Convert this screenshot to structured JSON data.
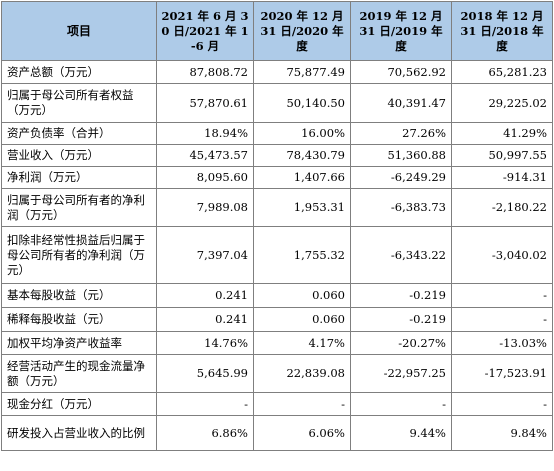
{
  "table": {
    "headers": [
      "项目",
      "2021 年 6 月 30 日/2021 年 1-6 月",
      "2020 年 12 月 31 日/2020 年度",
      "2019 年 12 月 31 日/2019 年度",
      "2018 年 12 月 31 日/2018 年度"
    ],
    "rows": [
      {
        "label": "资产总额（万元）",
        "values": [
          "87,808.72",
          "75,877.49",
          "70,562.92",
          "65,281.23"
        ]
      },
      {
        "label": "归属于母公司所有者权益（万元）",
        "values": [
          "57,870.61",
          "50,140.50",
          "40,391.47",
          "29,225.02"
        ]
      },
      {
        "label": "资产负债率（合并）",
        "values": [
          "18.94%",
          "16.00%",
          "27.26%",
          "41.29%"
        ]
      },
      {
        "label": "营业收入（万元）",
        "values": [
          "45,473.57",
          "78,430.79",
          "51,360.88",
          "50,997.55"
        ]
      },
      {
        "label": "净利润（万元）",
        "values": [
          "8,095.60",
          "1,407.66",
          "-6,249.29",
          "-914.31"
        ]
      },
      {
        "label": "归属于母公司所有者的净利润（万元）",
        "values": [
          "7,989.08",
          "1,953.31",
          "-6,383.73",
          "-2,180.22"
        ]
      },
      {
        "label": "扣除非经常性损益后归属于母公司所有者的净利润（万元）",
        "values": [
          "7,397.04",
          "1,755.32",
          "-6,343.22",
          "-3,040.02"
        ]
      },
      {
        "label": "基本每股收益（元）",
        "values": [
          "0.241",
          "0.060",
          "-0.219",
          "-"
        ]
      },
      {
        "label": "稀释每股收益（元）",
        "values": [
          "0.241",
          "0.060",
          "-0.219",
          "-"
        ]
      },
      {
        "label": "加权平均净资产收益率",
        "values": [
          "14.76%",
          "4.17%",
          "-20.27%",
          "-13.03%"
        ]
      },
      {
        "label": "经营活动产生的现金流量净额（万元）",
        "values": [
          "5,645.99",
          "22,839.08",
          "-22,957.25",
          "-17,523.91"
        ]
      },
      {
        "label": "现金分红（万元）",
        "values": [
          "-",
          "-",
          "-",
          "-"
        ]
      },
      {
        "label": "研发投入占营业收入的比例",
        "values": [
          "6.86%",
          "6.06%",
          "9.44%",
          "9.84%"
        ]
      }
    ]
  }
}
